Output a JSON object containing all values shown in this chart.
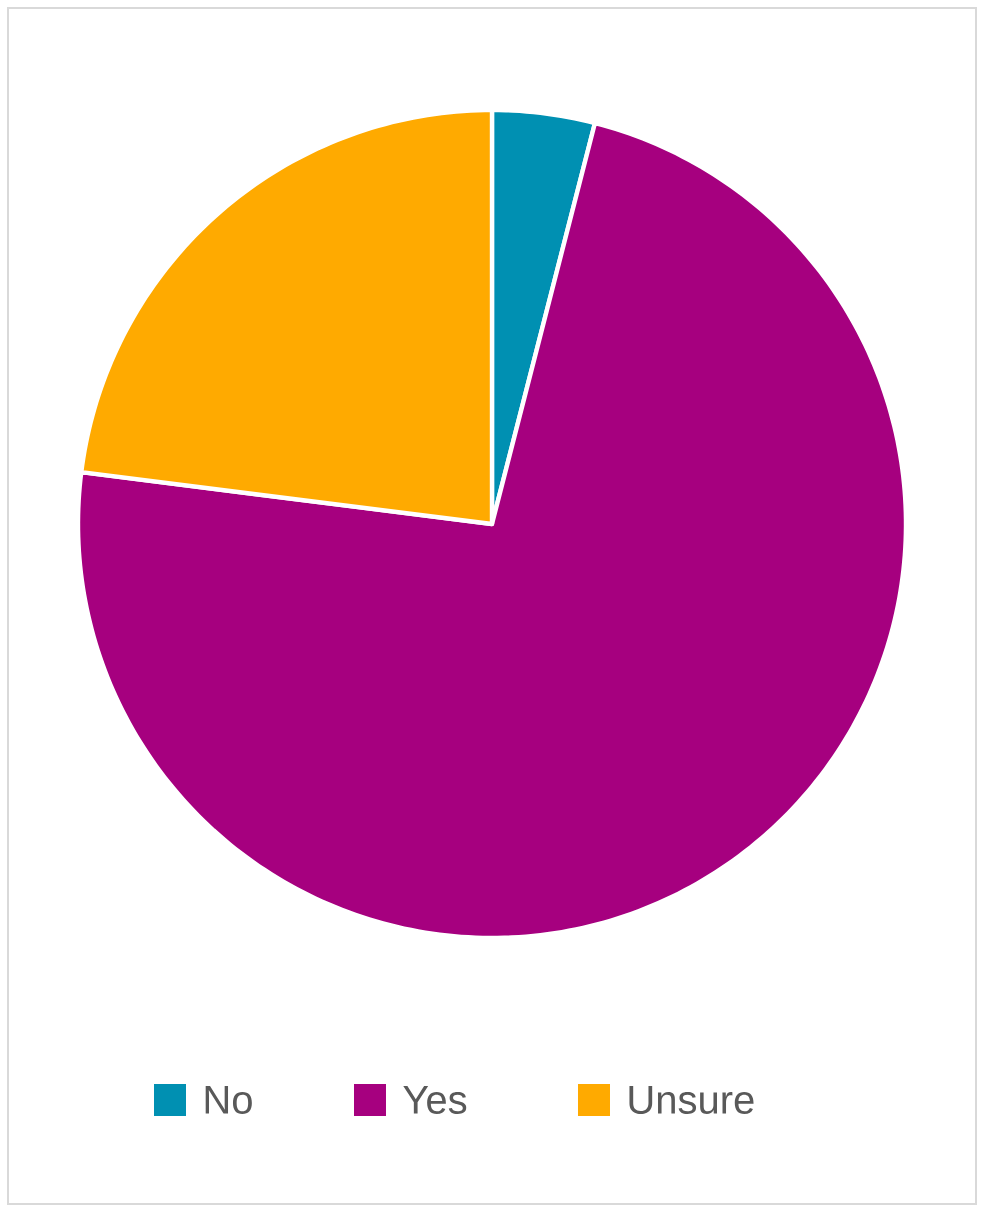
{
  "chart_data": {
    "type": "pie",
    "categories": [
      "No",
      "Yes",
      "Unsure"
    ],
    "values": [
      4,
      73,
      23
    ],
    "colors": [
      "#0090b2",
      "#a6007f",
      "#ffaa00"
    ],
    "legend": "bottom"
  }
}
